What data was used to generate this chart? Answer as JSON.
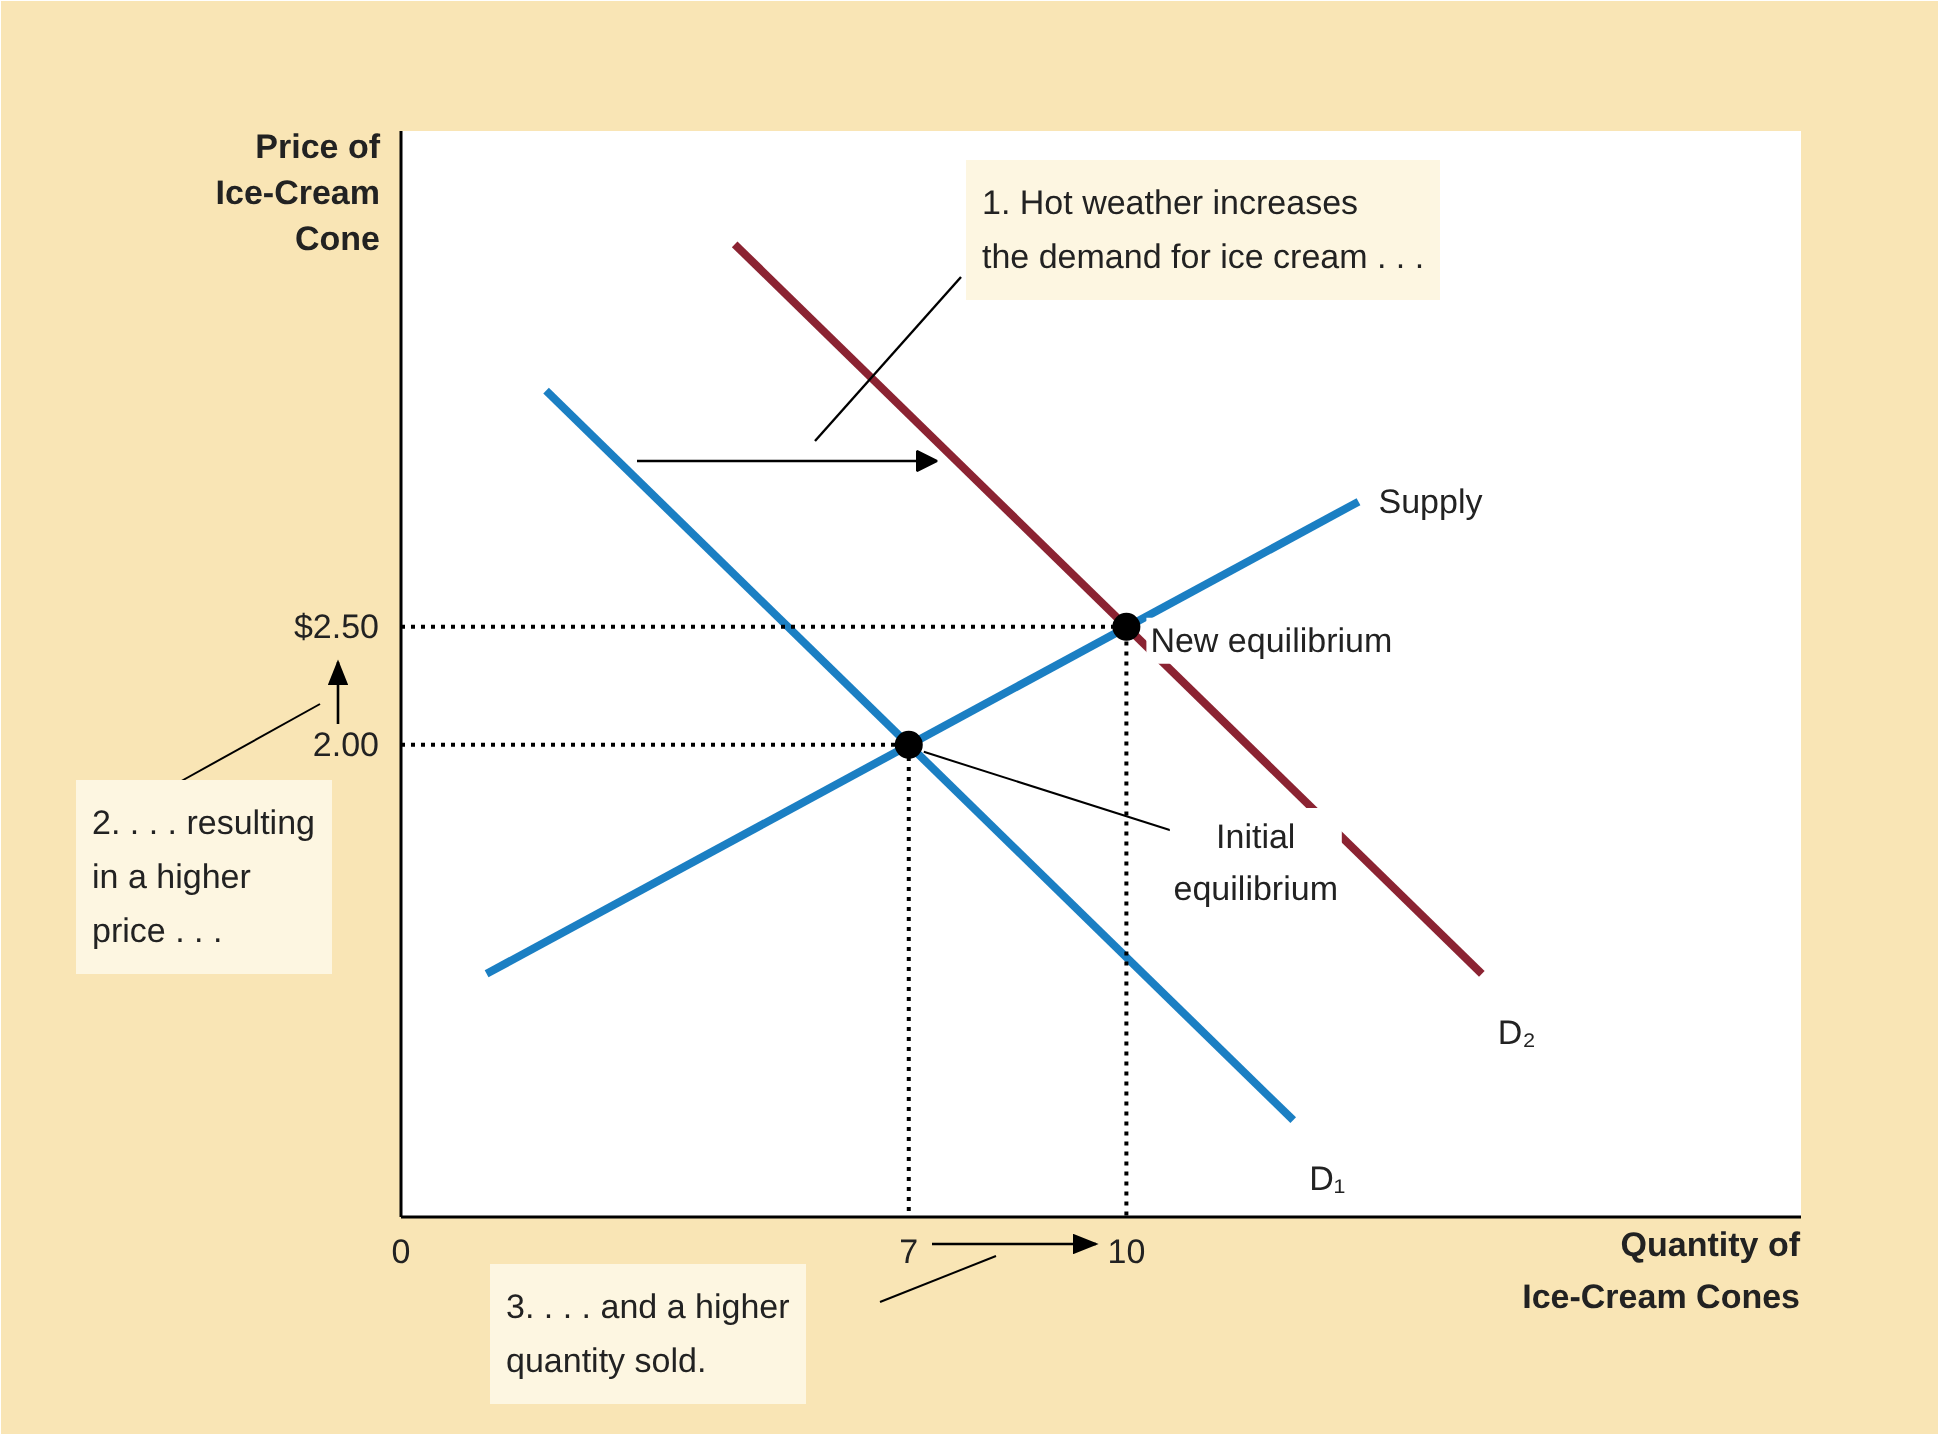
{
  "chart_data": {
    "type": "line",
    "xlabel": "Quantity of\nIce-Cream Cones",
    "ylabel": "Price of\nIce-Cream\nCone",
    "xlim": [
      0,
      19.3
    ],
    "ylim": [
      0,
      4.6
    ],
    "xticks": [
      0,
      7,
      10
    ],
    "yticks": [
      {
        "value": 2,
        "label": "2.00"
      },
      {
        "value": 2.5,
        "label": "$2.50"
      }
    ],
    "grid": false,
    "legend": false,
    "series": [
      {
        "name": "Supply",
        "color": "#1b7fc3",
        "x": [
          1.18,
          13.2
        ],
        "values": [
          1.03,
          3.03
        ]
      },
      {
        "name": "D₁",
        "color": "#1b7fc3",
        "x": [
          2.0,
          12.3
        ],
        "values": [
          3.5,
          0.41
        ]
      },
      {
        "name": "D₂",
        "color": "#8b2332",
        "x": [
          4.6,
          14.9
        ],
        "values": [
          4.12,
          1.03
        ]
      },
      {
        "line_style": "dotted",
        "color": "#000000",
        "x": [
          0,
          7,
          7
        ],
        "values": [
          2,
          2,
          0
        ]
      },
      {
        "line_style": "dotted",
        "color": "#000000",
        "x": [
          0,
          10,
          10
        ],
        "values": [
          2.5,
          2.5,
          0
        ]
      },
      {
        "type": "scatter",
        "marker": "circle",
        "color": "#000000",
        "x": [
          7,
          10
        ],
        "values": [
          2,
          2.5
        ]
      }
    ],
    "annotations": [
      {
        "text": "Initial\nequilibrium",
        "x": 7,
        "y": 2
      },
      {
        "text": "New equilibrium",
        "x": 10,
        "y": 2.5
      },
      "1. Hot weather increases\nthe demand for ice cream . . .",
      "2. . . . resulting\nin a higher\nprice . . .",
      "3. . . . and a higher\nquantity sold."
    ]
  }
}
